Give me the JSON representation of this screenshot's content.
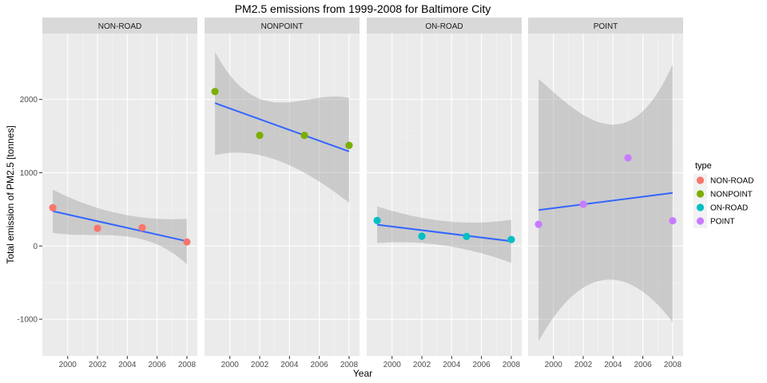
{
  "chart_data": {
    "type": "scatter",
    "title": "PM2.5 emissions from 1999-2008 for Baltimore City",
    "xlabel": "Year",
    "ylabel": "Total emission of PM2.5 [tonnes]",
    "xlim": [
      1998.3,
      2008.7
    ],
    "ylim": [
      -1500,
      2900
    ],
    "x_ticks": [
      2000,
      2002,
      2004,
      2006,
      2008
    ],
    "x_tick_labels": [
      "2000",
      "2002",
      "2004",
      "2006",
      "2008"
    ],
    "y_ticks": [
      -1000,
      0,
      1000,
      2000
    ],
    "y_tick_labels": [
      "-1000",
      "0",
      "1000",
      "2000"
    ],
    "grid": true,
    "facet_by": "type",
    "smoothing": "linear fit with confidence band",
    "legend": {
      "title": "type",
      "position": "right",
      "entries": [
        {
          "label": "NON-ROAD",
          "color": "#f8766d"
        },
        {
          "label": "NONPOINT",
          "color": "#7cae00"
        },
        {
          "label": "ON-ROAD",
          "color": "#00bfc4"
        },
        {
          "label": "POINT",
          "color": "#c77cff"
        }
      ]
    },
    "panels": [
      {
        "label": "NON-ROAD",
        "color": "#f8766d",
        "x": [
          1999,
          2002,
          2005,
          2008
        ],
        "y": [
          522,
          241,
          249,
          55
        ],
        "fit": {
          "y_start": 475,
          "y_end": 65
        },
        "band": {
          "upper": [
            770,
            520,
            390,
            370
          ],
          "lower": [
            180,
            150,
            90,
            -250
          ]
        }
      },
      {
        "label": "NONPOINT",
        "color": "#7cae00",
        "x": [
          1999,
          2002,
          2005,
          2008
        ],
        "y": [
          2108,
          1510,
          1510,
          1374
        ],
        "fit": {
          "y_start": 1950,
          "y_end": 1290
        },
        "band": {
          "upper": [
            2650,
            2010,
            1990,
            2020
          ],
          "lower": [
            1240,
            1240,
            1000,
            590
          ]
        }
      },
      {
        "label": "ON-ROAD",
        "color": "#00bfc4",
        "x": [
          1999,
          2002,
          2005,
          2008
        ],
        "y": [
          347,
          134,
          130,
          88
        ],
        "fit": {
          "y_start": 290,
          "y_end": 65
        },
        "band": {
          "upper": [
            540,
            385,
            320,
            360
          ],
          "lower": [
            40,
            40,
            -50,
            -230
          ]
        }
      },
      {
        "label": "POINT",
        "color": "#c77cff",
        "x": [
          1999,
          2002,
          2005,
          2008
        ],
        "y": [
          296,
          569,
          1202,
          344
        ],
        "fit": {
          "y_start": 490,
          "y_end": 725
        },
        "band": {
          "upper": [
            2280,
            1790,
            1700,
            2480
          ],
          "lower": [
            -1300,
            -570,
            -510,
            -1040
          ]
        }
      }
    ]
  }
}
